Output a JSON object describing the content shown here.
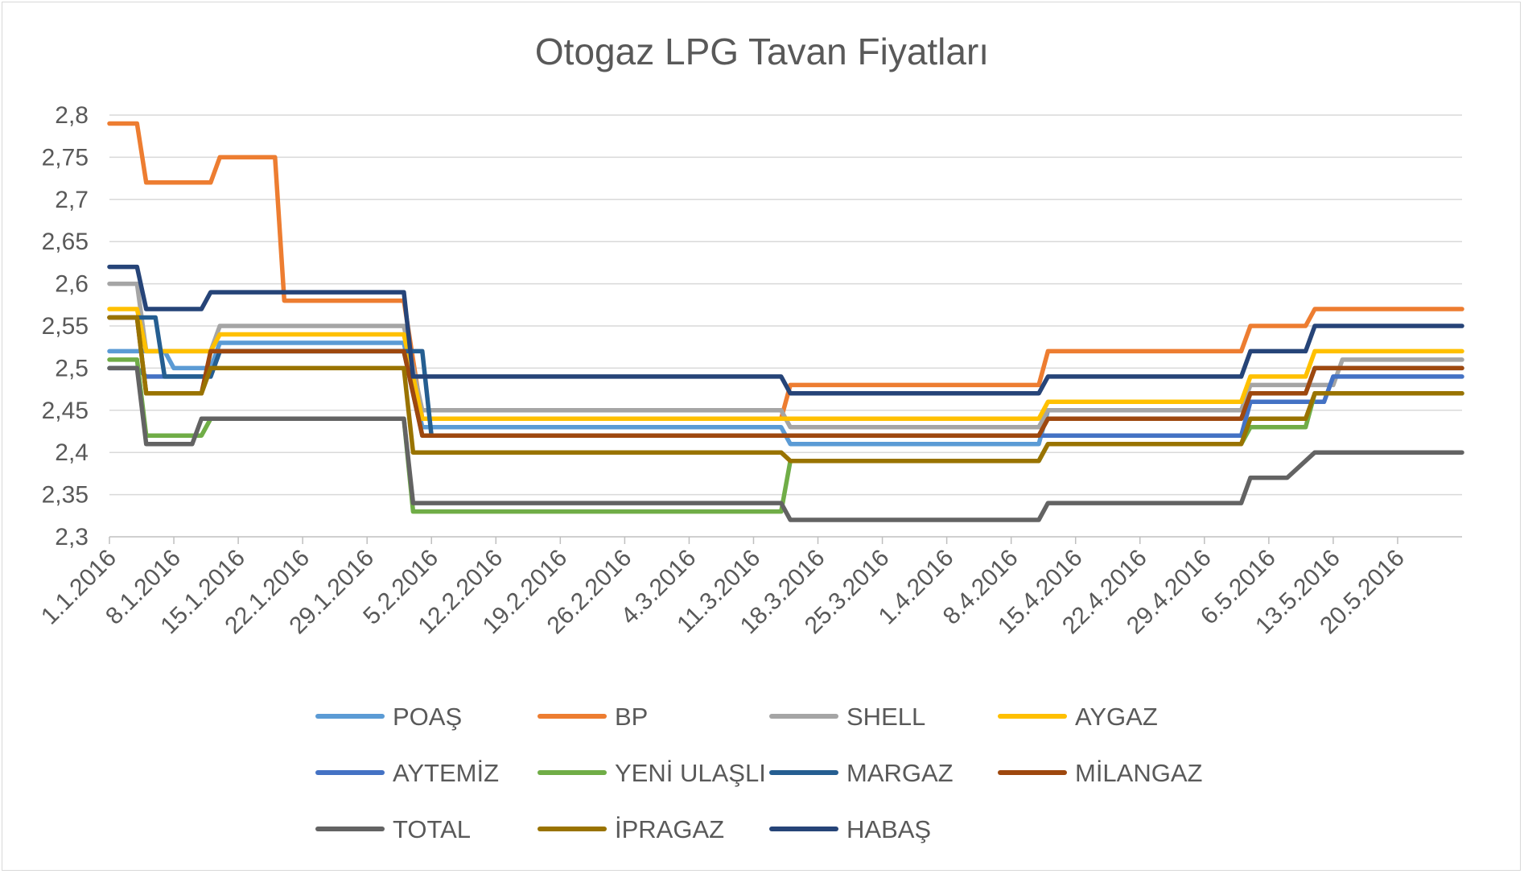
{
  "chart_data": {
    "type": "line",
    "title": "Otogaz LPG Tavan  Fiyatları",
    "xlabel": "",
    "ylabel": "",
    "ylim": [
      2.3,
      2.8
    ],
    "yticks": [
      "2,3",
      "2,35",
      "2,4",
      "2,45",
      "2,5",
      "2,55",
      "2,6",
      "2,65",
      "2,7",
      "2,75",
      "2,8"
    ],
    "x_start": "1.1.2016",
    "x_end": "27.5.2016",
    "xticks": [
      "1.1.2016",
      "8.1.2016",
      "15.1.2016",
      "22.1.2016",
      "29.1.2016",
      "5.2.2016",
      "12.2.2016",
      "19.2.2016",
      "26.2.2016",
      "4.3.2016",
      "11.3.2016",
      "18.3.2016",
      "25.3.2016",
      "1.4.2016",
      "8.4.2016",
      "15.4.2016",
      "22.4.2016",
      "29.4.2016",
      "6.5.2016",
      "13.5.2016",
      "20.5.2016"
    ],
    "grid": true,
    "legend_position": "bottom",
    "series": [
      {
        "name": "POAŞ",
        "color": "#5b9bd5",
        "points": [
          [
            "1.1.2016",
            2.52
          ],
          [
            "4.1.2016",
            2.52
          ],
          [
            "7.1.2016",
            2.52
          ],
          [
            "8.1.2016",
            2.5
          ],
          [
            "12.1.2016",
            2.5
          ],
          [
            "13.1.2016",
            2.53
          ],
          [
            "2.2.2016",
            2.53
          ],
          [
            "4.2.2016",
            2.43
          ],
          [
            "14.3.2016",
            2.43
          ],
          [
            "15.3.2016",
            2.41
          ],
          [
            "11.4.2016",
            2.41
          ],
          [
            "12.4.2016",
            2.45
          ],
          [
            "3.5.2016",
            2.45
          ],
          [
            "4.5.2016",
            2.47
          ],
          [
            "10.5.2016",
            2.47
          ],
          [
            "11.5.2016",
            2.5
          ],
          [
            "27.5.2016",
            2.5
          ]
        ]
      },
      {
        "name": "BP",
        "color": "#ed7d31",
        "points": [
          [
            "1.1.2016",
            2.79
          ],
          [
            "4.1.2016",
            2.79
          ],
          [
            "5.1.2016",
            2.72
          ],
          [
            "12.1.2016",
            2.72
          ],
          [
            "13.1.2016",
            2.75
          ],
          [
            "19.1.2016",
            2.75
          ],
          [
            "20.1.2016",
            2.58
          ],
          [
            "2.2.2016",
            2.58
          ],
          [
            "4.2.2016",
            2.44
          ],
          [
            "14.3.2016",
            2.44
          ],
          [
            "15.3.2016",
            2.48
          ],
          [
            "11.4.2016",
            2.48
          ],
          [
            "12.4.2016",
            2.52
          ],
          [
            "3.5.2016",
            2.52
          ],
          [
            "4.5.2016",
            2.55
          ],
          [
            "10.5.2016",
            2.55
          ],
          [
            "11.5.2016",
            2.57
          ],
          [
            "27.5.2016",
            2.57
          ]
        ]
      },
      {
        "name": "SHELL",
        "color": "#a5a5a5",
        "points": [
          [
            "1.1.2016",
            2.6
          ],
          [
            "4.1.2016",
            2.6
          ],
          [
            "5.1.2016",
            2.52
          ],
          [
            "12.1.2016",
            2.52
          ],
          [
            "13.1.2016",
            2.55
          ],
          [
            "2.2.2016",
            2.55
          ],
          [
            "4.2.2016",
            2.45
          ],
          [
            "14.3.2016",
            2.45
          ],
          [
            "15.3.2016",
            2.43
          ],
          [
            "11.4.2016",
            2.43
          ],
          [
            "12.4.2016",
            2.45
          ],
          [
            "3.5.2016",
            2.45
          ],
          [
            "4.5.2016",
            2.48
          ],
          [
            "13.5.2016",
            2.48
          ],
          [
            "14.5.2016",
            2.51
          ],
          [
            "27.5.2016",
            2.51
          ]
        ]
      },
      {
        "name": "AYGAZ",
        "color": "#ffc000",
        "points": [
          [
            "1.1.2016",
            2.57
          ],
          [
            "4.1.2016",
            2.57
          ],
          [
            "5.1.2016",
            2.52
          ],
          [
            "12.1.2016",
            2.52
          ],
          [
            "13.1.2016",
            2.54
          ],
          [
            "2.2.2016",
            2.54
          ],
          [
            "4.2.2016",
            2.44
          ],
          [
            "11.4.2016",
            2.44
          ],
          [
            "12.4.2016",
            2.46
          ],
          [
            "3.5.2016",
            2.46
          ],
          [
            "4.5.2016",
            2.49
          ],
          [
            "10.5.2016",
            2.49
          ],
          [
            "11.5.2016",
            2.52
          ],
          [
            "27.5.2016",
            2.52
          ]
        ]
      },
      {
        "name": "AYTEMİZ",
        "color": "#4472c4",
        "points": [
          [
            "1.1.2016",
            2.5
          ],
          [
            "4.1.2016",
            2.5
          ],
          [
            "5.1.2016",
            2.49
          ],
          [
            "12.1.2016",
            2.49
          ],
          [
            "13.1.2016",
            2.52
          ],
          [
            "2.2.2016",
            2.52
          ],
          [
            "4.2.2016",
            2.42
          ],
          [
            "11.4.2016",
            2.42
          ],
          [
            "12.4.2016",
            2.42
          ],
          [
            "3.5.2016",
            2.42
          ],
          [
            "4.5.2016",
            2.46
          ],
          [
            "12.5.2016",
            2.46
          ],
          [
            "13.5.2016",
            2.49
          ],
          [
            "27.5.2016",
            2.49
          ]
        ]
      },
      {
        "name": "YENİ ULAŞLI",
        "color": "#70ad47",
        "points": [
          [
            "1.1.2016",
            2.51
          ],
          [
            "4.1.2016",
            2.51
          ],
          [
            "5.1.2016",
            2.42
          ],
          [
            "11.1.2016",
            2.42
          ],
          [
            "12.1.2016",
            2.44
          ],
          [
            "2.2.2016",
            2.44
          ],
          [
            "3.2.2016",
            2.33
          ],
          [
            "14.3.2016",
            2.33
          ],
          [
            "15.3.2016",
            2.39
          ],
          [
            "11.4.2016",
            2.39
          ],
          [
            "12.4.2016",
            2.41
          ],
          [
            "3.5.2016",
            2.41
          ],
          [
            "4.5.2016",
            2.43
          ],
          [
            "10.5.2016",
            2.43
          ],
          [
            "11.5.2016",
            2.47
          ],
          [
            "27.5.2016",
            2.47
          ]
        ]
      },
      {
        "name": "MARGAZ",
        "color": "#255e91",
        "points": [
          [
            "1.1.2016",
            2.56
          ],
          [
            "6.1.2016",
            2.56
          ],
          [
            "7.1.2016",
            2.49
          ],
          [
            "12.1.2016",
            2.49
          ],
          [
            "13.1.2016",
            2.52
          ],
          [
            "4.2.2016",
            2.52
          ],
          [
            "5.2.2016",
            2.42
          ]
        ]
      },
      {
        "name": "MİLANGAZ",
        "color": "#9e480e",
        "points": [
          [
            "1.1.2016",
            2.56
          ],
          [
            "4.1.2016",
            2.56
          ],
          [
            "5.1.2016",
            2.47
          ],
          [
            "11.1.2016",
            2.47
          ],
          [
            "12.1.2016",
            2.52
          ],
          [
            "2.2.2016",
            2.52
          ],
          [
            "4.2.2016",
            2.42
          ],
          [
            "11.4.2016",
            2.42
          ],
          [
            "12.4.2016",
            2.44
          ],
          [
            "3.5.2016",
            2.44
          ],
          [
            "4.5.2016",
            2.47
          ],
          [
            "10.5.2016",
            2.47
          ],
          [
            "11.5.2016",
            2.5
          ],
          [
            "27.5.2016",
            2.5
          ]
        ]
      },
      {
        "name": "TOTAL",
        "color": "#636363",
        "points": [
          [
            "1.1.2016",
            2.5
          ],
          [
            "4.1.2016",
            2.5
          ],
          [
            "5.1.2016",
            2.41
          ],
          [
            "10.1.2016",
            2.41
          ],
          [
            "11.1.2016",
            2.44
          ],
          [
            "2.2.2016",
            2.44
          ],
          [
            "3.2.2016",
            2.34
          ],
          [
            "14.3.2016",
            2.34
          ],
          [
            "15.3.2016",
            2.32
          ],
          [
            "11.4.2016",
            2.32
          ],
          [
            "12.4.2016",
            2.34
          ],
          [
            "3.5.2016",
            2.34
          ],
          [
            "4.5.2016",
            2.37
          ],
          [
            "8.5.2016",
            2.37
          ],
          [
            "11.5.2016",
            2.4
          ],
          [
            "27.5.2016",
            2.4
          ]
        ]
      },
      {
        "name": "İPRAGAZ",
        "color": "#997300",
        "points": [
          [
            "1.1.2016",
            2.56
          ],
          [
            "4.1.2016",
            2.56
          ],
          [
            "5.1.2016",
            2.47
          ],
          [
            "11.1.2016",
            2.47
          ],
          [
            "12.1.2016",
            2.5
          ],
          [
            "2.2.2016",
            2.5
          ],
          [
            "3.2.2016",
            2.4
          ],
          [
            "14.3.2016",
            2.4
          ],
          [
            "15.3.2016",
            2.39
          ],
          [
            "11.4.2016",
            2.39
          ],
          [
            "12.4.2016",
            2.41
          ],
          [
            "3.5.2016",
            2.41
          ],
          [
            "4.5.2016",
            2.44
          ],
          [
            "10.5.2016",
            2.44
          ],
          [
            "11.5.2016",
            2.47
          ],
          [
            "27.5.2016",
            2.47
          ]
        ]
      },
      {
        "name": "HABAŞ",
        "color": "#264478",
        "points": [
          [
            "1.1.2016",
            2.62
          ],
          [
            "4.1.2016",
            2.62
          ],
          [
            "5.1.2016",
            2.57
          ],
          [
            "11.1.2016",
            2.57
          ],
          [
            "12.1.2016",
            2.59
          ],
          [
            "2.2.2016",
            2.59
          ],
          [
            "3.2.2016",
            2.49
          ],
          [
            "14.3.2016",
            2.49
          ],
          [
            "15.3.2016",
            2.47
          ],
          [
            "11.4.2016",
            2.47
          ],
          [
            "12.4.2016",
            2.49
          ],
          [
            "3.5.2016",
            2.49
          ],
          [
            "4.5.2016",
            2.52
          ],
          [
            "10.5.2016",
            2.52
          ],
          [
            "11.5.2016",
            2.55
          ],
          [
            "27.5.2016",
            2.55
          ]
        ]
      }
    ]
  }
}
